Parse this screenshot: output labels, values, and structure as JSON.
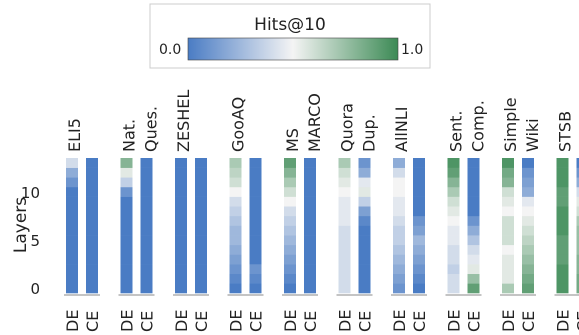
{
  "chart_data": {
    "type": "heatmap",
    "title": "",
    "colorbar": {
      "title": "Hits@10",
      "min_label": "0.0",
      "max_label": "1.0",
      "range": [
        0.0,
        1.0
      ],
      "colors": {
        "low": "#4a7cc4",
        "mid": "#f4f4f4",
        "high": "#3c8a55"
      }
    },
    "ylabel": "Layers",
    "yticks": [
      "0",
      "5",
      "10"
    ],
    "layers": [
      0,
      1,
      2,
      3,
      4,
      5,
      6,
      7,
      8,
      9,
      10,
      11,
      12,
      13
    ],
    "groups": [
      "ELI5",
      "Nat.\nQues.",
      "ZESHEL",
      "GooAQ",
      "MS\nMARCO",
      "Quora\nDup.",
      "AllNLI",
      "Sent.\nComp.",
      "Simple\nWiki",
      "STSB"
    ],
    "columns": [
      "DE",
      "CE"
    ],
    "grid": false,
    "series": [
      {
        "group": "ELI5",
        "column": "DE",
        "values": [
          0.0,
          0.0,
          0.0,
          0.0,
          0.0,
          0.0,
          0.0,
          0.0,
          0.0,
          0.0,
          0.0,
          0.1,
          0.2,
          0.4
        ]
      },
      {
        "group": "ELI5",
        "column": "CE",
        "values": [
          0.0,
          0.0,
          0.0,
          0.0,
          0.0,
          0.0,
          0.0,
          0.0,
          0.0,
          0.0,
          0.0,
          0.0,
          0.0,
          0.0
        ]
      },
      {
        "group": "Nat.\nQues.",
        "column": "DE",
        "values": [
          0.0,
          0.0,
          0.0,
          0.0,
          0.0,
          0.0,
          0.0,
          0.0,
          0.0,
          0.0,
          0.1,
          0.35,
          0.55,
          0.8
        ]
      },
      {
        "group": "Nat.\nQues.",
        "column": "CE",
        "values": [
          0.0,
          0.0,
          0.0,
          0.0,
          0.0,
          0.0,
          0.0,
          0.0,
          0.0,
          0.0,
          0.0,
          0.0,
          0.0,
          0.0
        ]
      },
      {
        "group": "ZESHEL",
        "column": "DE",
        "values": [
          0.0,
          0.0,
          0.0,
          0.0,
          0.0,
          0.0,
          0.0,
          0.0,
          0.0,
          0.0,
          0.0,
          0.0,
          0.0,
          0.0
        ]
      },
      {
        "group": "ZESHEL",
        "column": "CE",
        "values": [
          0.0,
          0.0,
          0.0,
          0.0,
          0.0,
          0.0,
          0.0,
          0.0,
          0.0,
          0.0,
          0.0,
          0.0,
          0.0,
          0.0
        ]
      },
      {
        "group": "GooAQ",
        "column": "DE",
        "values": [
          0.0,
          0.05,
          0.1,
          0.15,
          0.2,
          0.25,
          0.25,
          0.3,
          0.35,
          0.4,
          0.5,
          0.6,
          0.65,
          0.7
        ]
      },
      {
        "group": "GooAQ",
        "column": "CE",
        "values": [
          0.0,
          0.05,
          0.1,
          0.0,
          0.0,
          0.0,
          0.0,
          0.0,
          0.0,
          0.0,
          0.0,
          0.0,
          0.0,
          0.0
        ]
      },
      {
        "group": "MS\nMARCO",
        "column": "DE",
        "values": [
          0.0,
          0.05,
          0.1,
          0.15,
          0.2,
          0.25,
          0.3,
          0.35,
          0.4,
          0.5,
          0.6,
          0.7,
          0.8,
          0.9
        ]
      },
      {
        "group": "MS\nMARCO",
        "column": "CE",
        "values": [
          0.0,
          0.0,
          0.0,
          0.0,
          0.0,
          0.0,
          0.0,
          0.0,
          0.0,
          0.0,
          0.0,
          0.0,
          0.0,
          0.0
        ]
      },
      {
        "group": "Quora\nDup.",
        "column": "DE",
        "values": [
          0.4,
          0.4,
          0.4,
          0.4,
          0.4,
          0.4,
          0.4,
          0.45,
          0.45,
          0.45,
          0.5,
          0.55,
          0.6,
          0.7
        ]
      },
      {
        "group": "Quora\nDup.",
        "column": "CE",
        "values": [
          0.0,
          0.0,
          0.0,
          0.0,
          0.0,
          0.0,
          0.0,
          0.05,
          0.15,
          0.35,
          0.55,
          0.45,
          0.2,
          0.1
        ]
      },
      {
        "group": "AllNLI",
        "column": "DE",
        "values": [
          0.1,
          0.15,
          0.2,
          0.25,
          0.3,
          0.35,
          0.35,
          0.4,
          0.45,
          0.45,
          0.5,
          0.5,
          0.4,
          0.2
        ]
      },
      {
        "group": "AllNLI",
        "column": "CE",
        "values": [
          0.0,
          0.05,
          0.1,
          0.15,
          0.2,
          0.25,
          0.15,
          0.1,
          0.0,
          0.0,
          0.0,
          0.0,
          0.0,
          0.0
        ]
      },
      {
        "group": "Sent.\nComp.",
        "column": "DE",
        "values": [
          0.4,
          0.4,
          0.35,
          0.4,
          0.4,
          0.45,
          0.45,
          0.5,
          0.55,
          0.6,
          0.7,
          0.8,
          0.9,
          0.95
        ]
      },
      {
        "group": "Sent.\nComp.",
        "column": "CE",
        "values": [
          0.9,
          0.75,
          0.55,
          0.45,
          0.4,
          0.3,
          0.2,
          0.1,
          0.0,
          0.0,
          0.0,
          0.0,
          0.0,
          0.0
        ]
      },
      {
        "group": "Simple\nWiki",
        "column": "DE",
        "values": [
          0.7,
          0.55,
          0.55,
          0.55,
          0.5,
          0.6,
          0.6,
          0.6,
          0.5,
          0.55,
          0.6,
          0.8,
          0.85,
          0.95
        ]
      },
      {
        "group": "Simple\nWiki",
        "column": "CE",
        "values": [
          0.9,
          0.85,
          0.8,
          0.75,
          0.7,
          0.65,
          0.6,
          0.55,
          0.5,
          0.45,
          0.2,
          0.15,
          0.1,
          0.0
        ]
      },
      {
        "group": "STSB",
        "column": "DE",
        "values": [
          0.95,
          0.95,
          0.95,
          0.9,
          0.9,
          0.9,
          0.95,
          0.95,
          0.95,
          0.9,
          0.9,
          0.95,
          0.95,
          0.95
        ]
      },
      {
        "group": "STSB",
        "column": "CE",
        "values": [
          0.85,
          0.85,
          0.8,
          0.8,
          0.75,
          0.75,
          0.75,
          0.7,
          0.6,
          0.55,
          0.4,
          0.2,
          0.1,
          0.0
        ]
      }
    ]
  }
}
